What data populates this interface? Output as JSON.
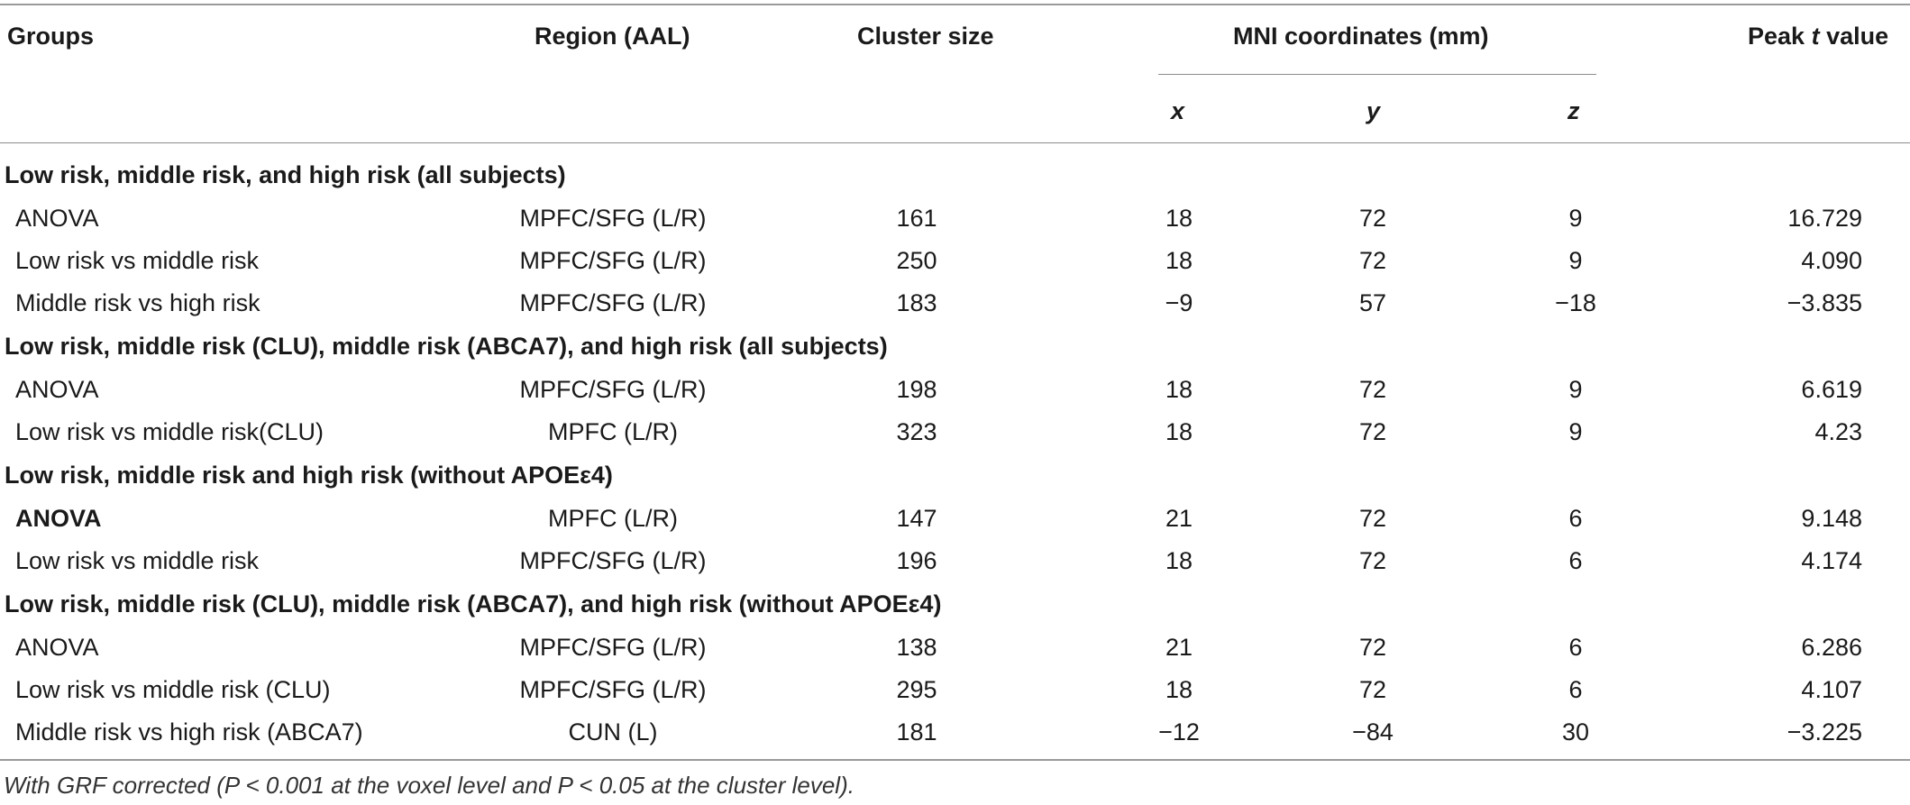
{
  "headers": {
    "groups": "Groups",
    "region": "Region (AAL)",
    "cluster": "Cluster size",
    "mni": "MNI coordinates (mm)",
    "peak_prefix": "Peak ",
    "peak_italic": "t",
    "peak_suffix": " value",
    "x": "x",
    "y": "y",
    "z": "z"
  },
  "rows": [
    {
      "type": "section",
      "label": "Low risk, middle risk, and high risk (all subjects)"
    },
    {
      "type": "data",
      "group": "ANOVA",
      "region": "MPFC/SFG (L/R)",
      "cluster": "161",
      "x": "18",
      "y": "72",
      "z": "9",
      "peak": "16.729"
    },
    {
      "type": "data",
      "group": "Low risk vs middle risk",
      "region": "MPFC/SFG (L/R)",
      "cluster": "250",
      "x": "18",
      "y": "72",
      "z": "9",
      "peak": "4.090"
    },
    {
      "type": "data",
      "group": "Middle risk vs high risk",
      "region": "MPFC/SFG (L/R)",
      "cluster": "183",
      "x": "−9",
      "y": "57",
      "z": "−18",
      "peak": "−3.835"
    },
    {
      "type": "section",
      "label": "Low risk, middle risk (CLU), middle risk (ABCA7), and high risk (all subjects)"
    },
    {
      "type": "data",
      "group": "ANOVA",
      "region": "MPFC/SFG (L/R)",
      "cluster": "198",
      "x": "18",
      "y": "72",
      "z": "9",
      "peak": "6.619"
    },
    {
      "type": "data",
      "group": "Low risk vs middle risk(CLU)",
      "region": "MPFC (L/R)",
      "cluster": "323",
      "x": "18",
      "y": "72",
      "z": "9",
      "peak": "4.23"
    },
    {
      "type": "section",
      "label": "Low risk, middle risk and high risk (without APOEε4)"
    },
    {
      "type": "data",
      "group": "ANOVA",
      "group_bold": true,
      "region": "MPFC (L/R)",
      "cluster": "147",
      "x": "21",
      "y": "72",
      "z": "6",
      "peak": "9.148"
    },
    {
      "type": "data",
      "group": "Low risk vs middle risk",
      "region": "MPFC/SFG (L/R)",
      "cluster": "196",
      "x": "18",
      "y": "72",
      "z": "6",
      "peak": "4.174"
    },
    {
      "type": "section",
      "label": "Low risk, middle risk (CLU), middle risk (ABCA7), and high risk (without APOEε4)"
    },
    {
      "type": "data",
      "group": "ANOVA",
      "region": "MPFC/SFG (L/R)",
      "cluster": "138",
      "x": "21",
      "y": "72",
      "z": "6",
      "peak": "6.286"
    },
    {
      "type": "data",
      "group": "Low risk vs middle risk (CLU)",
      "region": "MPFC/SFG (L/R)",
      "cluster": "295",
      "x": "18",
      "y": "72",
      "z": "6",
      "peak": "4.107"
    },
    {
      "type": "data",
      "group": "Middle risk vs high risk (ABCA7)",
      "region": "CUN (L)",
      "cluster": "181",
      "x": "−12",
      "y": "−84",
      "z": "30",
      "peak": "−3.225"
    }
  ],
  "footnote": "With GRF corrected (P < 0.001 at the voxel level and P < 0.05 at the cluster level)."
}
